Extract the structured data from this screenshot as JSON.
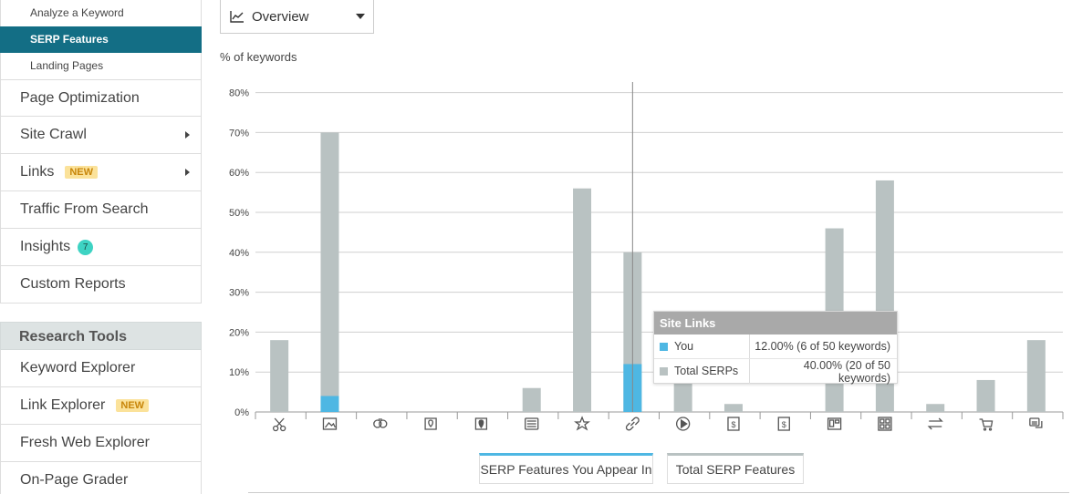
{
  "sidebar": {
    "sub_items": [
      {
        "label": "Analyze a Keyword",
        "active": false
      },
      {
        "label": "SERP Features",
        "active": true
      },
      {
        "label": "Landing Pages",
        "active": false
      }
    ],
    "nav_items": [
      {
        "label": "Page Optimization"
      },
      {
        "label": "Site Crawl"
      },
      {
        "label": "Links",
        "badge": "NEW"
      },
      {
        "label": "Traffic From Search"
      },
      {
        "label": "Insights",
        "count": "7"
      },
      {
        "label": "Custom Reports"
      }
    ],
    "research_heading": "Research Tools",
    "research_items": [
      {
        "label": "Keyword Explorer"
      },
      {
        "label": "Link Explorer",
        "badge": "NEW"
      },
      {
        "label": "Fresh Web Explorer"
      },
      {
        "label": "On-Page Grader"
      }
    ]
  },
  "view_select": {
    "value": "Overview",
    "icon": "line-chart-icon"
  },
  "chart_data": {
    "type": "bar",
    "stacked": true,
    "ylabel": "% of keywords",
    "ylim": [
      0,
      85
    ],
    "yticks": [
      "0%",
      "10%",
      "20%",
      "30%",
      "40%",
      "50%",
      "60%",
      "70%",
      "80%"
    ],
    "categories": [
      "scissors-icon",
      "image-icon",
      "people-icon",
      "map-pin-icon",
      "local-pack-icon",
      "news-icon",
      "star-icon",
      "link-icon",
      "video-icon",
      "ad-top-icon",
      "ad-bottom-icon",
      "knowledge-panel-icon",
      "grid-icon",
      "transfer-icon",
      "shopping-cart-icon",
      "comment-icon"
    ],
    "series": [
      {
        "name": "SERP Features You Appear In",
        "color": "#4eb7e3",
        "values": [
          0,
          4,
          0,
          0,
          0,
          0,
          0,
          12,
          0,
          0,
          0,
          0,
          0,
          0,
          0,
          0
        ]
      },
      {
        "name": "Total SERP Features",
        "color": "#b9c2c2",
        "values": [
          18,
          70,
          0,
          0,
          0,
          6,
          56,
          40,
          8,
          2,
          0,
          46,
          58,
          2,
          8,
          18
        ]
      }
    ],
    "gridlines": true,
    "legend_position": "bottom"
  },
  "tooltip": {
    "title": "Site Links",
    "rows": [
      {
        "name": "You",
        "value": "12.00% (6 of 50 keywords)",
        "color": "#4eb7e3"
      },
      {
        "name": "Total SERPs",
        "value": "40.00% (20 of 50 keywords)",
        "color": "#b9c2c2"
      }
    ]
  },
  "legend": [
    "SERP Features You Appear In",
    "Total SERP Features"
  ]
}
